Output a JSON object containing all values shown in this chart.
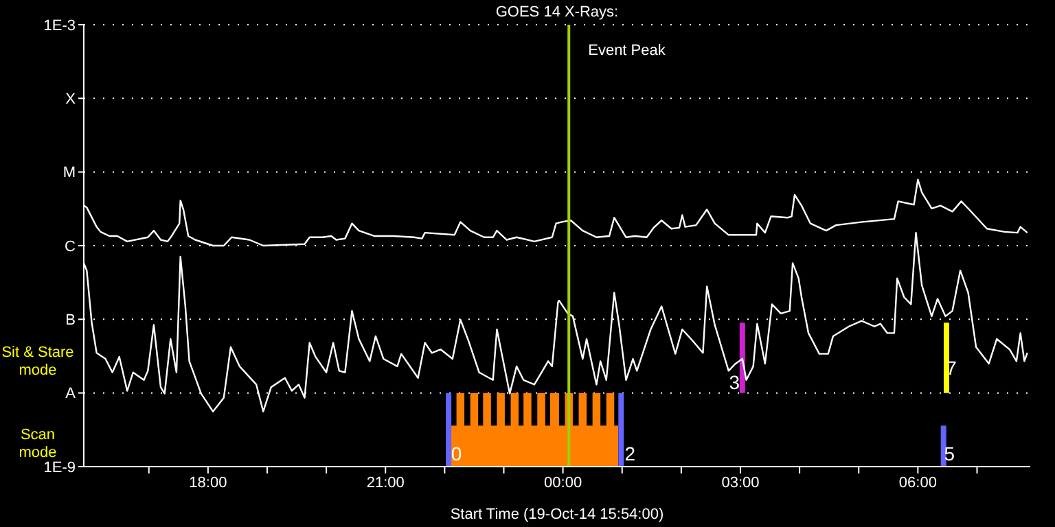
{
  "chart_data": {
    "type": "line",
    "title": "GOES 14 X-Rays:",
    "xlabel": "Start Time (19-Oct-14 15:54:00)",
    "log": "y",
    "grid": "y",
    "xlim": [
      "--10-19T15:54",
      "--10-20T07:54"
    ],
    "xticks": [
      {
        "value": "--10-19T17:00",
        "label": null
      },
      {
        "value": "--10-19T18:00",
        "label": "18:00"
      },
      {
        "value": "--10-19T19:00",
        "label": null
      },
      {
        "value": "--10-19T20:00",
        "label": null
      },
      {
        "value": "--10-19T21:00",
        "label": "21:00"
      },
      {
        "value": "--10-19T22:00",
        "label": null
      },
      {
        "value": "--10-19T23:00",
        "label": null
      },
      {
        "value": "--10-20T00:00",
        "label": "00:00"
      },
      {
        "value": "--10-20T01:00",
        "label": null
      },
      {
        "value": "--10-20T02:00",
        "label": null
      },
      {
        "value": "--10-20T03:00",
        "label": "03:00"
      },
      {
        "value": "--10-20T04:00",
        "label": null
      },
      {
        "value": "--10-20T05:00",
        "label": null
      },
      {
        "value": "--10-20T06:00",
        "label": "06:00"
      },
      {
        "value": "--10-20T07:00",
        "label": null
      }
    ],
    "ylim": [
      1e-09,
      0.001
    ],
    "yticks": [
      {
        "value": 1e-09,
        "label": "1E-9"
      },
      {
        "value": 1e-08,
        "label": "A"
      },
      {
        "value": 1e-07,
        "label": "B"
      },
      {
        "value": 1e-06,
        "label": "C"
      },
      {
        "value": 1e-05,
        "label": "M"
      },
      {
        "value": 0.0001,
        "label": "X"
      },
      {
        "value": 0.001,
        "label": "1E-3"
      }
    ],
    "ref_lines": [
      {
        "axis": "x",
        "value": "--10-20T00:06",
        "label": "Event Peak",
        "color": "#a0d000"
      }
    ],
    "annotations": [
      "Sit & Stare mode",
      "Scan mode",
      {
        "text": "0",
        "x": "--10-19T22:12",
        "y": 1.5e-09
      },
      {
        "text": "2",
        "x": "--10-20T01:08",
        "y": 1.5e-09
      },
      {
        "text": "3",
        "x": "--10-20T02:54",
        "y": 1.4e-08
      },
      {
        "text": "7",
        "x": "--10-20T06:34",
        "y": 2.2e-08
      },
      {
        "text": "5",
        "x": "--10-20T06:32",
        "y": 1.5e-09
      }
    ],
    "series": [
      {
        "type": "area",
        "color": "#ff8000",
        "x": [
          "--10-19T22:06",
          "--10-19T22:12",
          "--10-19T22:12",
          "--10-19T22:20",
          "--10-19T22:20",
          "--10-19T22:26",
          "--10-19T22:26",
          "--10-19T22:34",
          "--10-19T22:34",
          "--10-19T22:39",
          "--10-19T22:39",
          "--10-19T22:47",
          "--10-19T22:47",
          "--10-19T22:53",
          "--10-19T22:53",
          "--10-19T23:01",
          "--10-19T23:01",
          "--10-19T23:07",
          "--10-19T23:07",
          "--10-19T23:15",
          "--10-19T23:15",
          "--10-19T23:20",
          "--10-19T23:20",
          "--10-19T23:28",
          "--10-19T23:28",
          "--10-19T23:34",
          "--10-19T23:34",
          "--10-19T23:42",
          "--10-19T23:42",
          "--10-19T23:47",
          "--10-19T23:47",
          "--10-19T23:56",
          "--10-19T23:56",
          "--10-20T00:02",
          "--10-20T00:02",
          "--10-20T00:10",
          "--10-20T00:10",
          "--10-20T00:16",
          "--10-20T00:16",
          "--10-20T00:24",
          "--10-20T00:24",
          "--10-20T00:30",
          "--10-20T00:30",
          "--10-20T00:38",
          "--10-20T00:38",
          "--10-20T00:44",
          "--10-20T00:44",
          "--10-20T00:52",
          "--10-20T00:52",
          "--10-20T00:56"
        ],
        "values": [
          3.6e-09,
          3.6e-09,
          1e-08,
          1e-08,
          3.6e-09,
          3.6e-09,
          1e-08,
          1e-08,
          3.6e-09,
          3.6e-09,
          1e-08,
          1e-08,
          3.6e-09,
          3.6e-09,
          1e-08,
          1e-08,
          3.6e-09,
          3.6e-09,
          1e-08,
          1e-08,
          3.6e-09,
          3.6e-09,
          1e-08,
          1e-08,
          3.6e-09,
          3.6e-09,
          1e-08,
          1e-08,
          3.6e-09,
          3.6e-09,
          1e-08,
          1e-08,
          3.6e-09,
          3.6e-09,
          1e-08,
          1e-08,
          3.6e-09,
          3.6e-09,
          1e-08,
          1e-08,
          3.6e-09,
          3.6e-09,
          1e-08,
          1e-08,
          3.6e-09,
          3.6e-09,
          1e-08,
          1e-08,
          3.6e-09,
          3.6e-09
        ]
      },
      {
        "type": "line",
        "color": "#6464ff",
        "x": [
          "--10-19T22:04",
          "--10-19T22:04"
        ],
        "values": [
          1e-09,
          1e-08
        ]
      },
      {
        "type": "line",
        "color": "#6464ff",
        "x": [
          "--10-20T00:59",
          "--10-20T00:59"
        ],
        "values": [
          1e-09,
          1e-08
        ]
      },
      {
        "type": "line",
        "color": "#d020d0",
        "x": [
          "--10-20T03:02",
          "--10-20T03:02"
        ],
        "values": [
          1e-08,
          9e-08
        ]
      },
      {
        "type": "line",
        "color": "#6464ff",
        "x": [
          "--10-20T06:26",
          "--10-20T06:26"
        ],
        "values": [
          1e-09,
          3.6e-09
        ]
      },
      {
        "type": "line",
        "color": "#ffff00",
        "x": [
          "--10-20T06:29",
          "--10-20T06:29"
        ],
        "values": [
          1e-08,
          9e-08
        ]
      },
      {
        "type": "line",
        "color": "#ffffff",
        "x": [
          "--10-19T15:54",
          "--10-19T15:57",
          "--10-19T16:07",
          "--10-19T16:11",
          "--10-19T16:20",
          "--10-19T16:28",
          "--10-19T16:38",
          "--10-19T16:59",
          "--10-19T17:05",
          "--10-19T17:12",
          "--10-19T17:19",
          "--10-19T17:23",
          "--10-19T17:31",
          "--10-19T17:32",
          "--10-19T17:35",
          "--10-19T17:40",
          "--10-19T17:47",
          "--10-19T18:05",
          "--10-19T18:16",
          "--10-19T18:24",
          "--10-19T18:42",
          "--10-19T18:56",
          "--10-19T19:38",
          "--10-19T19:43",
          "--10-19T19:56",
          "--10-19T20:05",
          "--10-19T20:10",
          "--10-19T20:19",
          "--10-19T20:26",
          "--10-19T20:33",
          "--10-19T20:49",
          "--10-19T21:08",
          "--10-19T21:29",
          "--10-19T21:37",
          "--10-19T21:40",
          "--10-19T22:10",
          "--10-19T22:16",
          "--10-19T22:26",
          "--10-19T22:40",
          "--10-19T22:49",
          "--10-19T22:53",
          "--10-19T23:03",
          "--10-19T23:13",
          "--10-19T23:31",
          "--10-19T23:49",
          "--10-19T23:53",
          "--10-19T23:59",
          "--10-20T00:08",
          "--10-20T00:20",
          "--10-20T00:34",
          "--10-20T00:47",
          "--10-20T00:52",
          "--10-20T01:04",
          "--10-20T01:13",
          "--10-20T01:25",
          "--10-20T01:32",
          "--10-20T01:40",
          "--10-20T01:50",
          "--10-20T01:58",
          "--10-20T02:01",
          "--10-20T02:04",
          "--10-20T02:15",
          "--10-20T02:26",
          "--10-20T02:34",
          "--10-20T02:48",
          "--10-20T03:16",
          "--10-20T03:17",
          "--10-20T03:25",
          "--10-20T03:31",
          "--10-20T03:48",
          "--10-20T03:52",
          "--10-20T03:55",
          "--10-20T04:02",
          "--10-20T04:11",
          "--10-20T04:27",
          "--10-20T04:37",
          "--10-20T05:04",
          "--10-20T05:36",
          "--10-20T05:40",
          "--10-20T05:56",
          "--10-20T06:00",
          "--10-20T06:04",
          "--10-20T06:14",
          "--10-20T06:23",
          "--10-20T06:35",
          "--10-20T06:44",
          "--10-20T06:51",
          "--10-20T07:10",
          "--10-20T07:28",
          "--10-20T07:41",
          "--10-20T07:44",
          "--10-20T07:51"
        ],
        "values": [
          3.5e-06,
          3.3e-06,
          1.8e-06,
          1.54e-06,
          1.35e-06,
          1.35e-06,
          1.14e-06,
          1.3e-06,
          1.6e-06,
          1.2e-06,
          1.14e-06,
          1.35e-06,
          2e-06,
          4.1e-06,
          3.1e-06,
          1.35e-06,
          1.2e-06,
          1e-06,
          1e-06,
          1.3e-06,
          1.2e-06,
          1e-06,
          1.05e-06,
          1.3e-06,
          1.3e-06,
          1.35e-06,
          1.2e-06,
          1.25e-06,
          2e-06,
          1.6e-06,
          1.35e-06,
          1.35e-06,
          1.3e-06,
          1.25e-06,
          1.5e-06,
          1.4e-06,
          2.1e-06,
          1.6e-06,
          1.3e-06,
          1.3e-06,
          1.6e-06,
          1.2e-06,
          1.3e-06,
          1.14e-06,
          1.3e-06,
          2e-06,
          2.1e-06,
          2.2e-06,
          1.6e-06,
          1.3e-06,
          1.35e-06,
          2.4e-06,
          1.3e-06,
          1.35e-06,
          1.3e-06,
          1.75e-06,
          2.2e-06,
          1.7e-06,
          1.75e-06,
          2.6e-06,
          1.8e-06,
          1.9e-06,
          3.1e-06,
          2e-06,
          1.4e-06,
          1.4e-06,
          2e-06,
          1.5e-06,
          2.5e-06,
          2.4e-06,
          2.5e-06,
          4.9e-06,
          3.5e-06,
          2e-06,
          1.6e-06,
          1.9e-06,
          2.1e-06,
          2.3e-06,
          4e-06,
          3.6e-06,
          7.9e-06,
          5.3e-06,
          3.2e-06,
          3.5e-06,
          2.9e-06,
          4e-06,
          3.2e-06,
          1.7e-06,
          1.54e-06,
          1.5e-06,
          1.8e-06,
          1.5e-06
        ]
      },
      {
        "type": "line",
        "color": "#ffffff",
        "x": [
          "--10-19T15:54",
          "--10-19T15:57",
          "--10-19T16:02",
          "--10-19T16:07",
          "--10-19T16:16",
          "--10-19T16:23",
          "--10-19T16:30",
          "--10-19T16:38",
          "--10-19T16:44",
          "--10-19T16:55",
          "--10-19T16:59",
          "--10-19T17:05",
          "--10-19T17:12",
          "--10-19T17:16",
          "--10-19T17:22",
          "--10-19T17:28",
          "--10-19T17:32",
          "--10-19T17:37",
          "--10-19T17:41",
          "--10-19T17:53",
          "--10-19T18:05",
          "--10-19T18:16",
          "--10-19T18:23",
          "--10-19T18:32",
          "--10-19T18:49",
          "--10-19T18:56",
          "--10-19T19:04",
          "--10-19T19:18",
          "--10-19T19:25",
          "--10-19T19:32",
          "--10-19T19:38",
          "--10-19T19:43",
          "--10-19T19:49",
          "--10-19T20:00",
          "--10-19T20:07",
          "--10-19T20:13",
          "--10-19T20:19",
          "--10-19T20:26",
          "--10-19T20:33",
          "--10-19T20:44",
          "--10-19T20:50",
          "--10-19T20:58",
          "--10-19T21:12",
          "--10-19T21:16",
          "--10-19T21:33",
          "--10-19T21:40",
          "--10-19T21:47",
          "--10-19T21:56",
          "--10-19T22:08",
          "--10-19T22:16",
          "--10-19T22:24",
          "--10-19T22:35",
          "--10-19T22:49",
          "--10-19T22:53",
          "--10-19T23:06",
          "--10-19T23:13",
          "--10-19T23:20",
          "--10-19T23:31",
          "--10-19T23:45",
          "--10-19T23:49",
          "--10-19T23:55",
          "--10-19T23:56",
          "--10-20T00:05",
          "--10-20T00:10",
          "--10-20T00:20",
          "--10-20T00:24",
          "--10-20T00:34",
          "--10-20T00:38",
          "--10-20T00:44",
          "--10-20T00:52",
          "--10-20T00:57",
          "--10-20T01:04",
          "--10-20T01:11",
          "--10-20T01:15",
          "--10-20T01:29",
          "--10-20T01:40",
          "--10-20T01:54",
          "--10-20T02:01",
          "--10-20T02:11",
          "--10-20T02:22",
          "--10-20T02:26",
          "--10-20T02:34",
          "--10-20T02:48",
          "--10-20T02:55",
          "--10-20T03:02",
          "--10-20T03:06",
          "--10-20T03:13",
          "--10-20T03:17",
          "--10-20T03:25",
          "--10-20T03:32",
          "--10-20T03:41",
          "--10-20T03:50",
          "--10-20T03:53",
          "--10-20T03:59",
          "--10-20T04:02",
          "--10-20T04:09",
          "--10-20T04:20",
          "--10-20T04:29",
          "--10-20T04:34",
          "--10-20T04:50",
          "--10-20T05:03",
          "--10-20T05:16",
          "--10-20T05:22",
          "--10-20T05:29",
          "--10-20T05:36",
          "--10-20T05:39",
          "--10-20T05:46",
          "--10-20T05:53",
          "--10-20T05:58",
          "--10-20T06:04",
          "--10-20T06:14",
          "--10-20T06:20",
          "--10-20T06:28",
          "--10-20T06:35",
          "--10-20T06:43",
          "--10-20T06:51",
          "--10-20T06:59",
          "--10-20T07:12",
          "--10-20T07:20",
          "--10-20T07:33",
          "--10-20T07:40",
          "--10-20T07:44",
          "--10-20T07:48",
          "--10-20T07:51"
        ],
        "values": [
          5.8e-07,
          4.6e-07,
          9.1e-08,
          3.5e-08,
          2.9e-08,
          1.9e-08,
          3.1e-08,
          1.07e-08,
          1.9e-08,
          1.5e-08,
          2e-08,
          8.4e-08,
          1.2e-08,
          9.8e-09,
          5.4e-08,
          1.9e-08,
          7.1e-07,
          1.5e-07,
          2.7e-08,
          9.8e-09,
          5.6e-09,
          8.6e-09,
          4.2e-08,
          2.3e-08,
          1.3e-08,
          5.6e-09,
          1.2e-08,
          1.6e-08,
          1.07e-08,
          1.3e-08,
          8.6e-09,
          4.8e-08,
          3.1e-08,
          1.9e-08,
          4.8e-08,
          2e-08,
          1.9e-08,
          1.3e-07,
          5.4e-08,
          2.7e-08,
          5.9e-08,
          2.9e-08,
          2.3e-08,
          3.4e-08,
          1.6e-08,
          4.8e-08,
          3.5e-08,
          3.9e-08,
          2.9e-08,
          9.9e-08,
          5.2e-08,
          1.9e-08,
          1.5e-08,
          7.3e-08,
          9.8e-09,
          2.3e-08,
          1.5e-08,
          1.3e-08,
          2.7e-08,
          2.3e-08,
          1.7e-07,
          1.8e-07,
          1.2e-07,
          1.1e-07,
          2.9e-08,
          5.4e-08,
          1.3e-08,
          2.7e-08,
          1.5e-08,
          2.3e-07,
          8.4e-08,
          1.5e-08,
          2.9e-08,
          2e-08,
          7.3e-08,
          1.5e-07,
          3.4e-08,
          7.3e-08,
          5.2e-08,
          3.5e-08,
          2.8e-07,
          8.4e-08,
          2e-08,
          2.5e-08,
          2.9e-08,
          1.5e-08,
          2.3e-08,
          8.7e-08,
          2.5e-08,
          1.6e-07,
          1.2e-07,
          1.3e-07,
          5.8e-07,
          3.6e-07,
          2e-07,
          6.5e-08,
          3.4e-08,
          3.4e-08,
          5.9e-08,
          8e-08,
          9.5e-08,
          8e-08,
          8.7e-08,
          6.5e-08,
          6.5e-08,
          3.6e-07,
          2e-07,
          1.6e-07,
          1.5e-06,
          2.9e-07,
          1.1e-07,
          1.9e-07,
          1.1e-07,
          1.3e-07,
          4.6e-07,
          2.3e-07,
          4.2e-08,
          2.5e-08,
          5.4e-08,
          3.9e-08,
          2.7e-08,
          6.5e-08,
          2.7e-08,
          3.5e-08
        ]
      }
    ]
  }
}
